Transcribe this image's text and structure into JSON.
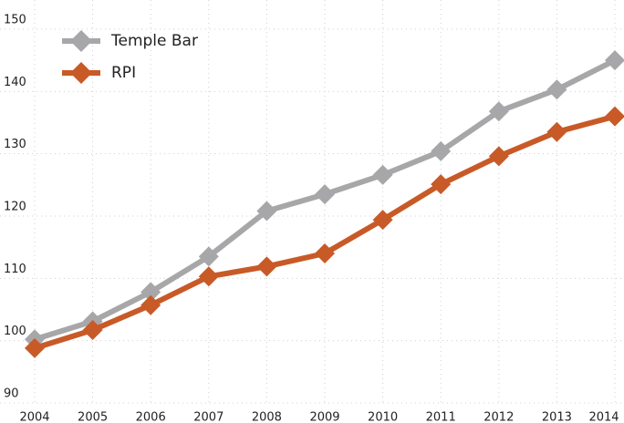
{
  "chart_data": {
    "type": "line",
    "x": [
      2004,
      2005,
      2006,
      2007,
      2008,
      2009,
      2010,
      2011,
      2012,
      2013,
      2014
    ],
    "series": [
      {
        "name": "Temple Bar",
        "color": "#a7a7a9",
        "values": [
          100.2,
          103.1,
          107.8,
          113.5,
          120.8,
          123.5,
          126.6,
          130.4,
          136.8,
          140.3,
          145
        ]
      },
      {
        "name": "RPI",
        "color": "#c85a27",
        "values": [
          98.8,
          101.7,
          105.7,
          110.3,
          111.9,
          114,
          119.4,
          125.1,
          129.6,
          133.5,
          136
        ]
      }
    ],
    "xlim": [
      2004,
      2014
    ],
    "xticks": [
      2004,
      2005,
      2006,
      2007,
      2008,
      2009,
      2010,
      2011,
      2012,
      2013,
      2014
    ],
    "ylim": [
      90,
      150
    ],
    "yticks": [
      90,
      100,
      110,
      120,
      130,
      140,
      150
    ],
    "grid": true,
    "legend": "top-left"
  }
}
